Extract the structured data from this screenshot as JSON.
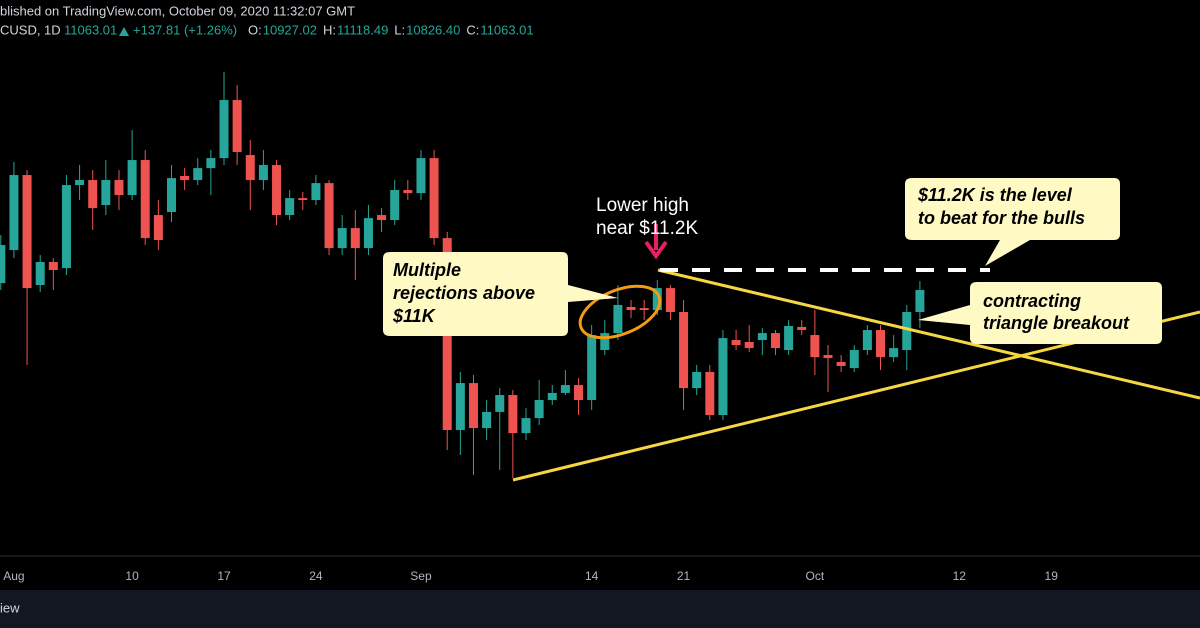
{
  "chart_data": {
    "type": "candlestick",
    "header": {
      "published": "blished on TradingView.com, October 09, 2020 11:32:07 GMT",
      "symbol": "CUSD, 1D",
      "price": "11063.01",
      "change": "+137.81 (+1.26%)",
      "ohlc": [
        {
          "label": "O:",
          "value": "10927.02"
        },
        {
          "label": "H:",
          "value": "11118.49"
        },
        {
          "label": "L:",
          "value": "10826.40"
        },
        {
          "label": "C:",
          "value": "11063.01"
        }
      ]
    },
    "categories": [
      null,
      "Aug",
      null,
      null,
      null,
      null,
      null,
      null,
      null,
      null,
      "10",
      null,
      null,
      null,
      null,
      null,
      null,
      "17",
      null,
      null,
      null,
      null,
      null,
      null,
      "24",
      null,
      null,
      null,
      null,
      null,
      null,
      null,
      "Sep",
      null,
      null,
      null,
      null,
      null,
      null,
      null,
      null,
      null,
      null,
      null,
      null,
      "14",
      null,
      null,
      null,
      null,
      null,
      null,
      "21",
      null,
      null,
      null,
      null,
      null,
      null,
      null,
      null,
      null,
      "Oct",
      null,
      null,
      null,
      null,
      null,
      null,
      null,
      null,
      null,
      null,
      "12",
      null,
      null,
      null,
      null,
      null,
      null,
      "19"
    ],
    "open": [
      11106,
      11311,
      11776,
      11094,
      11237,
      11199,
      11714,
      11745,
      11590,
      11745,
      11652,
      11869,
      11528,
      11547,
      11770,
      11745,
      11819,
      11881,
      12241,
      11900,
      11745,
      11838,
      11528,
      11633,
      11621,
      11726,
      11323,
      11447,
      11323,
      11528,
      11497,
      11683,
      11664,
      11881,
      11385,
      10195,
      10486,
      10207,
      10307,
      10412,
      10176,
      10269,
      10381,
      10425,
      10474,
      10381,
      10691,
      10796,
      10958,
      10951,
      10939,
      11075,
      10927,
      10455,
      10555,
      10288,
      10753,
      10741,
      10753,
      10796,
      10691,
      10834,
      10784,
      10660,
      10617,
      10579,
      10691,
      10815,
      10647,
      10691,
      10927.02,
      null,
      null,
      null,
      null,
      null,
      null,
      null,
      null,
      null,
      null
    ],
    "high": [
      11404,
      11857,
      11807,
      11280,
      11261,
      11776,
      11838,
      11807,
      11869,
      11807,
      12055,
      11931,
      11621,
      11838,
      11819,
      11881,
      11931,
      12415,
      12334,
      11993,
      11931,
      11869,
      11683,
      11671,
      11776,
      11745,
      11528,
      11559,
      11590,
      11571,
      11745,
      11745,
      11931,
      11931,
      11423,
      10555,
      10536,
      10381,
      10455,
      10443,
      10331,
      10505,
      10474,
      10567,
      10517,
      10846,
      10877,
      11094,
      11001,
      11001,
      11125,
      11094,
      11001,
      10598,
      10598,
      10815,
      10815,
      10846,
      10827,
      10815,
      10877,
      10877,
      10939,
      10722,
      10660,
      10722,
      10846,
      10846,
      10784,
      10970,
      11118.49,
      null,
      null,
      null,
      null,
      null,
      null,
      null,
      null,
      null,
      null
    ],
    "low": [
      11063,
      11261,
      10598,
      11051,
      11063,
      11156,
      11621,
      11435,
      11528,
      11559,
      11621,
      11342,
      11311,
      11485,
      11683,
      11714,
      11652,
      11838,
      11838,
      11559,
      11683,
      11466,
      11497,
      11559,
      11590,
      11280,
      11280,
      11125,
      11280,
      11423,
      11466,
      11621,
      11621,
      11342,
      10071,
      10040,
      9916,
      10133,
      9947,
      9897,
      10133,
      10226,
      10350,
      10412,
      10288,
      10319,
      10660,
      10753,
      10889,
      10877,
      10908,
      10877,
      10319,
      10412,
      10257,
      10257,
      10691,
      10679,
      10660,
      10660,
      10660,
      10784,
      10536,
      10431,
      10555,
      10555,
      10660,
      10567,
      10617,
      10567,
      10826.4,
      null,
      null,
      null,
      null,
      null,
      null,
      null,
      null,
      null,
      null
    ],
    "close": [
      11342,
      11776,
      11075,
      11237,
      11187,
      11714,
      11745,
      11571,
      11745,
      11652,
      11869,
      11385,
      11373,
      11757,
      11745,
      11819,
      11881,
      12241,
      11919,
      11745,
      11838,
      11528,
      11633,
      11621,
      11726,
      11323,
      11447,
      11323,
      11509,
      11497,
      11683,
      11664,
      11881,
      11385,
      10195,
      10486,
      10207,
      10307,
      10412,
      10176,
      10269,
      10381,
      10425,
      10474,
      10381,
      10784,
      10796,
      10970,
      10939,
      10939,
      11075,
      10927,
      10455,
      10555,
      10288,
      10765,
      10722,
      10703,
      10796,
      10703,
      10840,
      10815,
      10647,
      10641,
      10592,
      10691,
      10815,
      10647,
      10703,
      10927,
      11063.01,
      null,
      null,
      null,
      null,
      null,
      null,
      null,
      null,
      null,
      null
    ],
    "up_color": "#26a69a",
    "down_color": "#ef5350",
    "ylim": [
      9420,
      12601
    ],
    "annotations": [
      {
        "lines": [
          "Lower high",
          "near $11.2K"
        ]
      },
      {
        "lines": [
          "Multiple",
          "rejections above",
          "$11K"
        ]
      },
      {
        "lines": [
          "$11.2K is the level",
          "to beat for the bulls"
        ]
      },
      {
        "lines": [
          "contracting",
          "triangle breakout"
        ]
      }
    ],
    "footer": "iew"
  }
}
